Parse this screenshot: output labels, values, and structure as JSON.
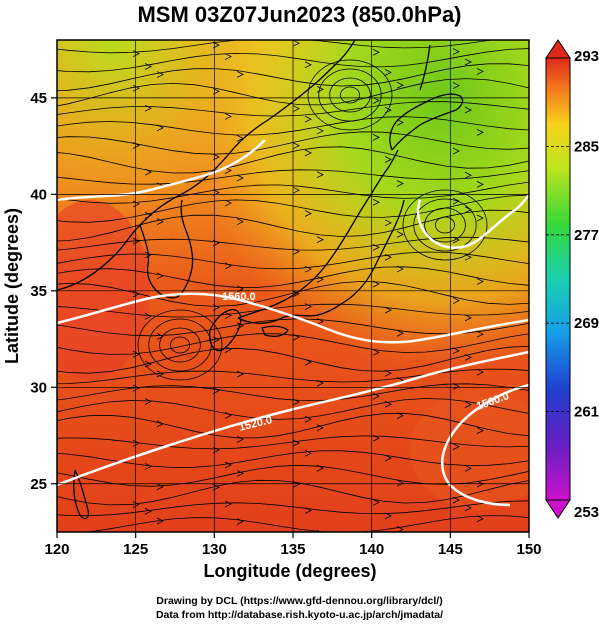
{
  "title": "MSM 03Z07Jun2023 (850.0hPa)",
  "x_axis": {
    "label": "Longitude (degrees)",
    "range": [
      120,
      150
    ],
    "ticks": [
      "120",
      "125",
      "130",
      "135",
      "140",
      "145",
      "150"
    ]
  },
  "y_axis": {
    "label": "Latitude  (degrees)",
    "range": [
      22.5,
      48
    ],
    "ticks": [
      "25",
      "30",
      "35",
      "40",
      "45"
    ]
  },
  "colorbar": {
    "range": [
      253,
      293
    ],
    "labels": [
      "293",
      "285",
      "277",
      "269",
      "261",
      "253"
    ]
  },
  "contours": {
    "labels": [
      "1520.0",
      "1560.0",
      "1560.0"
    ]
  },
  "credits": {
    "line1": "Drawing by DCL (https://www.gfd-dennou.org/library/dcl/)",
    "line2": "Data from http://database.rish.kyoto-u.ac.jp/arch/jmadata/"
  },
  "colors": {
    "warm": "#e8401a",
    "mid": "#f2a020",
    "cool": "#8ccf1e",
    "contour": "#ffffff",
    "coast": "#000000"
  }
}
